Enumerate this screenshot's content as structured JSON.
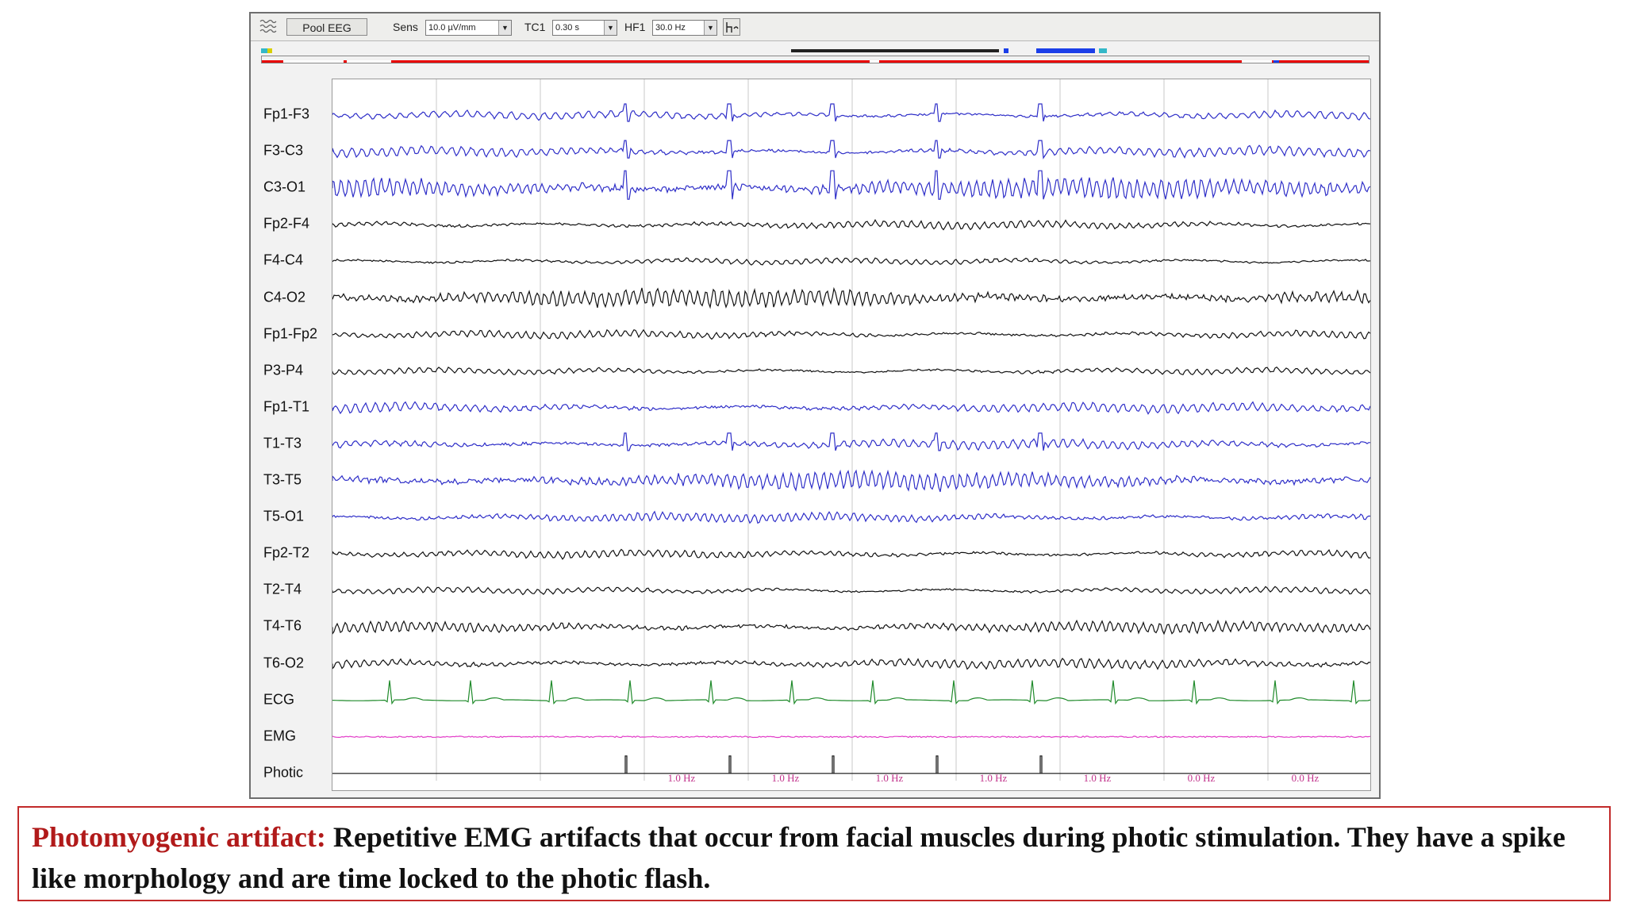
{
  "toolbar": {
    "montage_button": "Pool EEG",
    "sens_label": "Sens",
    "sens_value": "10.0 µV/mm",
    "tc_label": "TC1",
    "tc_value": "0.30 s",
    "hf_label": "HF1",
    "hf_value": "30.0 Hz",
    "icons": [
      "eeg-waves-icon",
      "filter-glyph-icon",
      "dropdown-arrow-icon"
    ]
  },
  "channels": [
    {
      "name": "Fp1-F3",
      "color": "#2e2ec8"
    },
    {
      "name": "F3-C3",
      "color": "#2e2ec8"
    },
    {
      "name": "C3-O1",
      "color": "#2e2ec8"
    },
    {
      "name": "Fp2-F4",
      "color": "#111111"
    },
    {
      "name": "F4-C4",
      "color": "#111111"
    },
    {
      "name": "C4-O2",
      "color": "#111111"
    },
    {
      "name": "Fp1-Fp2",
      "color": "#111111"
    },
    {
      "name": "P3-P4",
      "color": "#111111"
    },
    {
      "name": "Fp1-T1",
      "color": "#2e2ec8"
    },
    {
      "name": "T1-T3",
      "color": "#2e2ec8"
    },
    {
      "name": "T3-T5",
      "color": "#2e2ec8"
    },
    {
      "name": "T5-O1",
      "color": "#2e2ec8"
    },
    {
      "name": "Fp2-T2",
      "color": "#111111"
    },
    {
      "name": "T2-T4",
      "color": "#111111"
    },
    {
      "name": "T4-T6",
      "color": "#111111"
    },
    {
      "name": "T6-O2",
      "color": "#111111"
    },
    {
      "name": "ECG",
      "color": "#1f8a2a"
    },
    {
      "name": "EMG",
      "color": "#e23cc8"
    },
    {
      "name": "Photic",
      "color": "#111111"
    }
  ],
  "photic_rates": [
    "1.0 Hz",
    "1.0 Hz",
    "1.0 Hz",
    "1.0 Hz",
    "1.0 Hz",
    "0.0 Hz",
    "0.0 Hz"
  ],
  "photic_rate_color": "#c0308a",
  "colors": {
    "marker_red": "#e80000",
    "accent_blue": "#1a3ee8",
    "caption_border": "#c22a2a",
    "caption_title": "#b11a1a"
  },
  "caption": {
    "title": "Photomyogenic artifact:",
    "text": " Repetitive EMG artifacts that occur from facial muscles during photic stimulation. They have a spike like morphology and are time locked to the photic flash."
  }
}
